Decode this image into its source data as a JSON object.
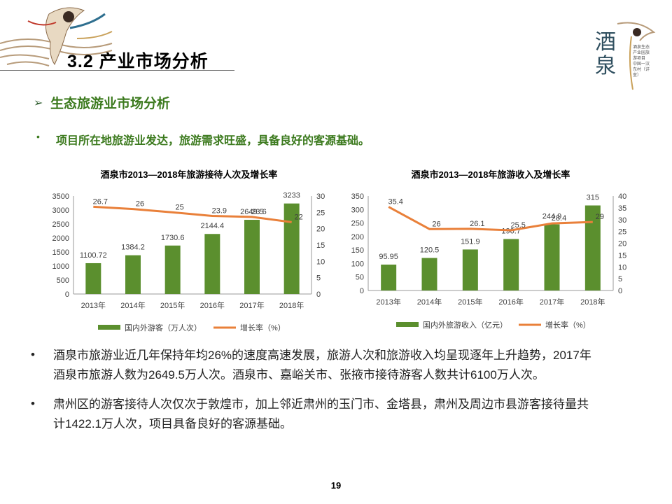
{
  "header": {
    "title": "3.2 产业市场分析",
    "logo_text": "酒泉",
    "logo_subtitle": "酒泉生态产业园旅游项目 中国一汉东村（详室）"
  },
  "section": {
    "arrow": "➢",
    "title": "生态旅游业市场分析"
  },
  "lead": {
    "bullet": "•",
    "text": "项目所在地旅游业发达，旅游需求旺盛，具备良好的客源基础。"
  },
  "colors": {
    "bar": "#5b8f2e",
    "line": "#e9803a",
    "title_green": "#3c7a1e"
  },
  "chart_data": [
    {
      "type": "bar",
      "title": "酒泉市2013—2018年旅游接待人次及增长率",
      "categories": [
        "2013年",
        "2014年",
        "2015年",
        "2016年",
        "2017年",
        "2018年"
      ],
      "series": [
        {
          "name": "国内外游客（万人次）",
          "type": "bar",
          "axis": "left",
          "values": [
            1100.72,
            1384.2,
            1730.6,
            2144.4,
            2649.5,
            3233
          ],
          "labels": [
            "1100.72",
            "1384.2",
            "1730.6",
            "2144.4",
            "2649.5",
            "3233"
          ]
        },
        {
          "name": "增长率（%）",
          "type": "line",
          "axis": "right",
          "values": [
            26.7,
            26,
            25,
            23.9,
            23.6,
            22
          ],
          "labels": [
            "26.7",
            "26",
            "25",
            "23.9",
            "23.6",
            "22"
          ]
        }
      ],
      "ylim_left": [
        0,
        3500
      ],
      "yticks_left": [
        "0",
        "500",
        "1000",
        "1500",
        "2000",
        "2500",
        "3000",
        "3500"
      ],
      "ylim_right": [
        0,
        30
      ],
      "yticks_right": [
        "0",
        "5",
        "10",
        "15",
        "20",
        "25",
        "30"
      ],
      "legend": "bottom"
    },
    {
      "type": "bar",
      "title": "酒泉市2013—2018年旅游收入及增长率",
      "categories": [
        "2013年",
        "2014年",
        "2015年",
        "2016年",
        "2017年",
        "2018年"
      ],
      "series": [
        {
          "name": "国内外旅游收入（亿元）",
          "type": "bar",
          "axis": "left",
          "values": [
            95.95,
            120.5,
            151.9,
            190.7,
            244.9,
            315
          ],
          "labels": [
            "95.95",
            "120.5",
            "151.9",
            "190.7",
            "244.9",
            "315"
          ]
        },
        {
          "name": "增长率（%）",
          "type": "line",
          "axis": "right",
          "values": [
            35.4,
            26,
            26.1,
            25.5,
            28.4,
            29
          ],
          "labels": [
            "35.4",
            "26",
            "26.1",
            "25.5",
            "28.4",
            "29"
          ]
        }
      ],
      "ylim_left": [
        0,
        350
      ],
      "yticks_left": [
        "0",
        "50",
        "100",
        "150",
        "200",
        "250",
        "300",
        "350"
      ],
      "ylim_right": [
        0,
        40
      ],
      "yticks_right": [
        "0",
        "5",
        "10",
        "15",
        "20",
        "25",
        "30",
        "35",
        "40"
      ],
      "legend": "bottom"
    }
  ],
  "paragraphs": [
    {
      "bullet": "•",
      "lines": [
        "酒泉市旅游业近几年保持年均26%的速度高速发展，旅游人次和旅游收入均呈现逐年上升趋势，2017年",
        "酒泉市旅游人数为2649.5万人次。酒泉市、嘉峪关市、张掖市接待游客人数共计6100万人次。"
      ]
    },
    {
      "bullet": "•",
      "lines": [
        "肃州区的游客接待人次仅次于敦煌市，加上邻近肃州的玉门市、金塔县，肃州及周边市县游客接待量共",
        "计1422.1万人次，项目具备良好的客源基础。"
      ]
    }
  ],
  "page_number": "19"
}
